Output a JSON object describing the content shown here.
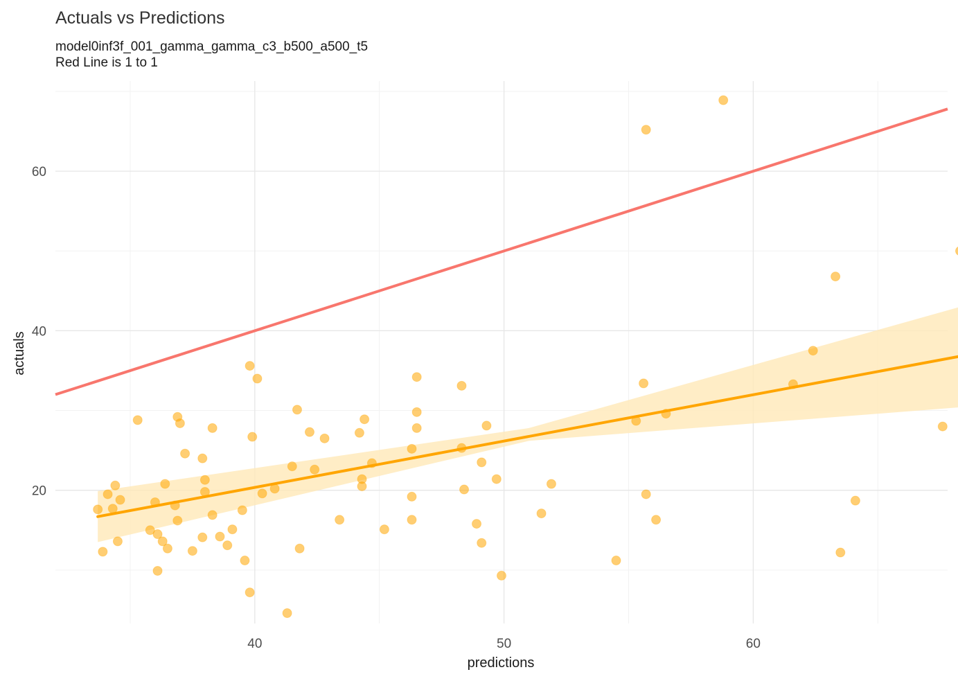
{
  "chart_data": {
    "type": "scatter",
    "title": "Actuals vs Predictions",
    "subtitle": [
      "model0inf3f_001_gamma_gamma_c3_b500_a500_t5",
      "Red Line is 1 to 1"
    ],
    "xlabel": "predictions",
    "ylabel": "actuals",
    "xlim": [
      32,
      67.8
    ],
    "ylim": [
      3.3,
      71.3
    ],
    "xticks": [
      40,
      50,
      60
    ],
    "yticks": [
      20,
      40,
      60
    ],
    "xminor": [
      35,
      45,
      55,
      65
    ],
    "yminor": [
      10,
      30,
      50,
      70
    ],
    "grid": true,
    "colors": {
      "points": "#FFA500",
      "fit": "#FFA500",
      "ribbon": "#FFE9B8",
      "reference": "#F8766D"
    },
    "points": [
      [
        33.7,
        17.6
      ],
      [
        33.9,
        12.3
      ],
      [
        34.1,
        19.5
      ],
      [
        34.3,
        17.7
      ],
      [
        34.4,
        20.6
      ],
      [
        34.5,
        13.6
      ],
      [
        34.6,
        18.8
      ],
      [
        35.3,
        28.8
      ],
      [
        35.8,
        15.0
      ],
      [
        36.0,
        18.5
      ],
      [
        36.1,
        14.5
      ],
      [
        36.1,
        9.9
      ],
      [
        36.3,
        13.6
      ],
      [
        36.4,
        20.8
      ],
      [
        36.5,
        12.7
      ],
      [
        36.8,
        18.1
      ],
      [
        36.9,
        29.2
      ],
      [
        36.9,
        16.2
      ],
      [
        37.0,
        28.4
      ],
      [
        37.2,
        24.6
      ],
      [
        37.5,
        12.4
      ],
      [
        37.9,
        24.0
      ],
      [
        37.9,
        14.1
      ],
      [
        38.0,
        21.3
      ],
      [
        38.0,
        19.8
      ],
      [
        38.3,
        16.9
      ],
      [
        38.3,
        27.8
      ],
      [
        38.6,
        14.2
      ],
      [
        38.9,
        13.1
      ],
      [
        39.1,
        15.1
      ],
      [
        39.5,
        17.5
      ],
      [
        39.6,
        11.2
      ],
      [
        39.8,
        35.6
      ],
      [
        39.8,
        7.2
      ],
      [
        39.9,
        26.7
      ],
      [
        40.1,
        34.0
      ],
      [
        40.3,
        19.6
      ],
      [
        40.8,
        20.2
      ],
      [
        41.3,
        4.6
      ],
      [
        41.5,
        23.0
      ],
      [
        41.7,
        30.1
      ],
      [
        41.8,
        12.7
      ],
      [
        42.2,
        27.3
      ],
      [
        42.4,
        22.6
      ],
      [
        42.8,
        26.5
      ],
      [
        43.4,
        16.3
      ],
      [
        44.2,
        27.2
      ],
      [
        44.3,
        20.5
      ],
      [
        44.3,
        21.4
      ],
      [
        44.4,
        28.9
      ],
      [
        44.7,
        23.4
      ],
      [
        45.2,
        15.1
      ],
      [
        46.3,
        25.2
      ],
      [
        46.3,
        19.2
      ],
      [
        46.3,
        16.3
      ],
      [
        46.5,
        34.2
      ],
      [
        46.5,
        29.8
      ],
      [
        46.5,
        27.8
      ],
      [
        48.3,
        33.1
      ],
      [
        48.3,
        25.3
      ],
      [
        48.4,
        20.1
      ],
      [
        48.9,
        15.8
      ],
      [
        49.1,
        23.5
      ],
      [
        49.1,
        13.4
      ],
      [
        49.3,
        28.1
      ],
      [
        49.7,
        21.4
      ],
      [
        49.9,
        9.3
      ],
      [
        51.5,
        17.1
      ],
      [
        51.9,
        20.8
      ],
      [
        54.5,
        11.2
      ],
      [
        55.3,
        28.7
      ],
      [
        55.6,
        33.4
      ],
      [
        55.7,
        65.2
      ],
      [
        55.7,
        19.5
      ],
      [
        56.1,
        16.3
      ],
      [
        56.5,
        29.6
      ],
      [
        58.8,
        68.9
      ],
      [
        61.6,
        33.3
      ],
      [
        62.4,
        37.5
      ],
      [
        63.3,
        46.8
      ],
      [
        63.5,
        12.2
      ],
      [
        64.1,
        18.7
      ],
      [
        67.6,
        28.0
      ],
      [
        68.3,
        50.0
      ]
    ],
    "fit_line": {
      "x": [
        33.7,
        68.3
      ],
      "y": [
        16.7,
        36.8
      ]
    },
    "ribbon": {
      "x": [
        33.7,
        51.0,
        68.3
      ],
      "lower": [
        13.5,
        26.2,
        30.4
      ],
      "upper": [
        19.9,
        27.8,
        43.0
      ]
    },
    "reference_line": {
      "slope": 1,
      "intercept": 0
    }
  }
}
